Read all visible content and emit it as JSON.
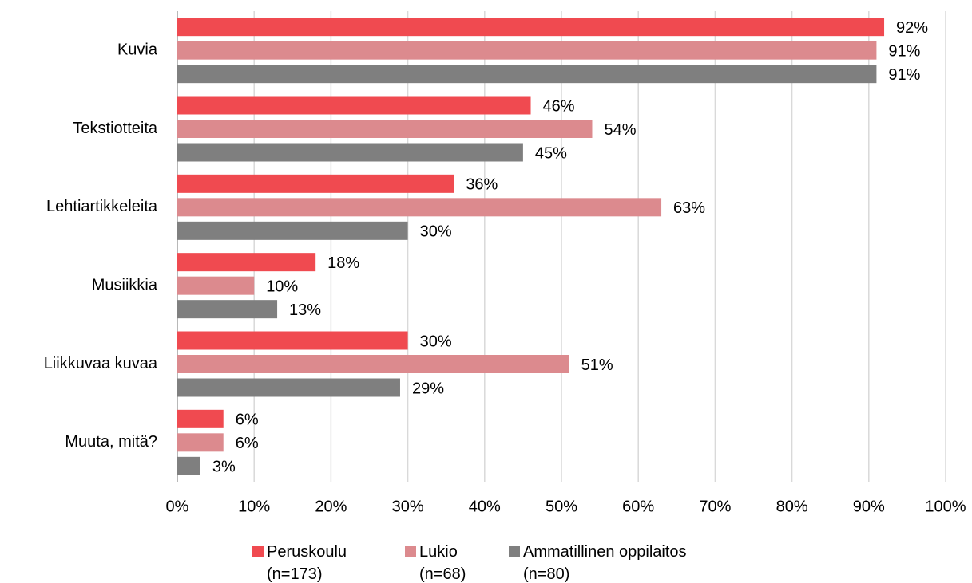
{
  "chart_data": {
    "type": "hbar",
    "categories": [
      "Kuvia",
      "Tekstiotteita",
      "Lehtiartikkeleita",
      "Musiikkia",
      "Liikkuvaa kuvaa",
      "Muuta, mitä?"
    ],
    "series": [
      {
        "name": "Peruskoulu\n(n=173)",
        "color": "#f04a50",
        "values": [
          92,
          46,
          36,
          18,
          30,
          6
        ],
        "value_labels": [
          "92%",
          "46%",
          "36%",
          "18%",
          "30%",
          "6%"
        ]
      },
      {
        "name": "Lukio\n(n=68)",
        "color": "#dc8a8e",
        "values": [
          91,
          54,
          63,
          10,
          51,
          6
        ],
        "value_labels": [
          "91%",
          "54%",
          "63%",
          "10%",
          "51%",
          "6%"
        ]
      },
      {
        "name": "Ammatillinen oppilaitos\n(n=80)",
        "color": "#7f7f7f",
        "values": [
          91,
          45,
          30,
          13,
          29,
          3
        ],
        "value_labels": [
          "91%",
          "45%",
          "30%",
          "13%",
          "29%",
          "3%"
        ]
      }
    ],
    "xlim": [
      0,
      100
    ],
    "xticks": [
      {
        "value": 0,
        "label": "0%"
      },
      {
        "value": 10,
        "label": "10%"
      },
      {
        "value": 20,
        "label": "20%"
      },
      {
        "value": 30,
        "label": "30%"
      },
      {
        "value": 40,
        "label": "40%"
      },
      {
        "value": 50,
        "label": "50%"
      },
      {
        "value": 60,
        "label": "60%"
      },
      {
        "value": 70,
        "label": "70%"
      },
      {
        "value": 80,
        "label": "80%"
      },
      {
        "value": 90,
        "label": "90%"
      },
      {
        "value": 100,
        "label": "100%"
      }
    ],
    "grid": true,
    "legend": "bottom"
  }
}
